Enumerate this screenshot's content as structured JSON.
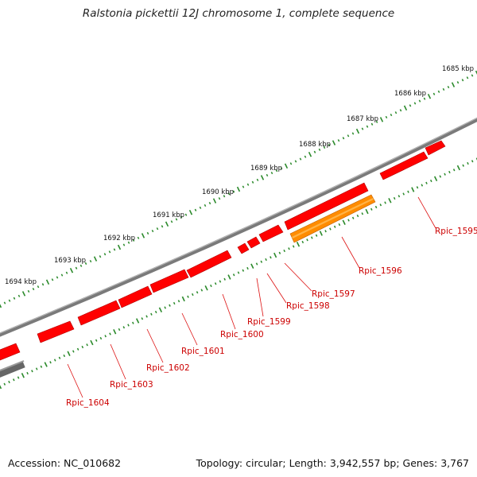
{
  "title": "Ralstonia pickettii 12J chromosome 1, complete sequence",
  "footer": {
    "accession": "Accession: NC_010682",
    "info": "Topology: circular; Length: 3,942,557 bp; Genes: 3,767"
  },
  "colors": {
    "backbone": "#808080",
    "ruler": "#2b8a2b",
    "gene": "#ff0000",
    "gene_highlight": "#ff8c00",
    "label": "#cc0000",
    "leader": "#dd1111"
  },
  "ruler_labels": [
    "1685 kbp",
    "1686 kbp",
    "1687 kbp",
    "1688 kbp",
    "1689 kbp",
    "1690 kbp",
    "1691 kbp",
    "1692 kbp",
    "1693 kbp",
    "1694 kbp"
  ],
  "gene_labels": [
    "Rpic_1595",
    "Rpic_1596",
    "Rpic_1597",
    "Rpic_1598",
    "Rpic_1599",
    "Rpic_1600",
    "Rpic_1601",
    "Rpic_1602",
    "Rpic_1603",
    "Rpic_1604"
  ]
}
